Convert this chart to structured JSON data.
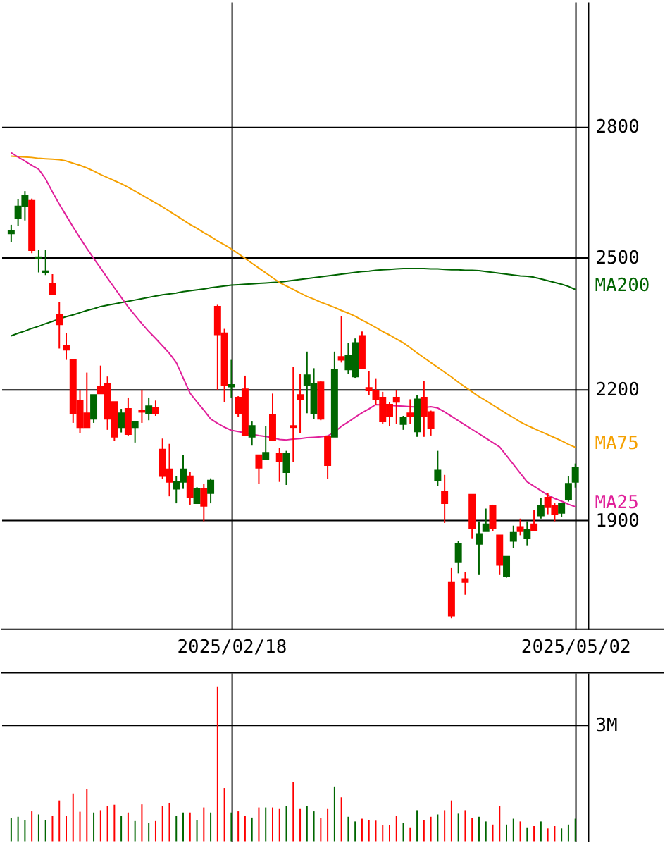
{
  "chart_data": [
    {
      "type": "candlestick",
      "categories": [
        null,
        null,
        null,
        null,
        null,
        null,
        null,
        null,
        null,
        null,
        null,
        null,
        null,
        null,
        null,
        null,
        null,
        null,
        null,
        null,
        null,
        null,
        null,
        null,
        null,
        null,
        null,
        null,
        null,
        null,
        null,
        null,
        "2025/02/18",
        null,
        null,
        null,
        null,
        null,
        null,
        null,
        null,
        null,
        null,
        null,
        null,
        null,
        null,
        null,
        null,
        null,
        null,
        null,
        null,
        null,
        null,
        null,
        null,
        null,
        null,
        null,
        null,
        null,
        null,
        null,
        null,
        null,
        null,
        null,
        null,
        null,
        null,
        null,
        null,
        null,
        null,
        null,
        null,
        null,
        null,
        null,
        null,
        null,
        "2025/05/02"
      ],
      "ohlc": [
        [
          2555,
          2575,
          2535,
          2562
        ],
        [
          2591,
          2633,
          2572,
          2617
        ],
        [
          2617,
          2652,
          2585,
          2642
        ],
        [
          2630,
          2635,
          2510,
          2517
        ],
        [
          2498,
          2517,
          2466,
          2501
        ],
        [
          2466,
          2517,
          2460,
          2469
        ],
        [
          2440,
          2462,
          2414,
          2417
        ],
        [
          2369,
          2398,
          2292,
          2347
        ],
        [
          2298,
          2327,
          2266,
          2289
        ],
        [
          2266,
          2266,
          2122,
          2144
        ],
        [
          2173,
          2196,
          2099,
          2112
        ],
        [
          2144,
          2237,
          2112,
          2112
        ],
        [
          2131,
          2186,
          2122,
          2186
        ],
        [
          2205,
          2253,
          2189,
          2189
        ],
        [
          2212,
          2228,
          2106,
          2131
        ],
        [
          2170,
          2170,
          2080,
          2090
        ],
        [
          2112,
          2154,
          2100,
          2144
        ],
        [
          2154,
          2180,
          2093,
          2096
        ],
        [
          2112,
          2125,
          2077,
          2125
        ],
        [
          2150,
          2196,
          2122,
          2147
        ],
        [
          2144,
          2180,
          2128,
          2160
        ],
        [
          2157,
          2173,
          2138,
          2144
        ],
        [
          2061,
          2086,
          1994,
          2000
        ],
        [
          2016,
          2074,
          1954,
          1987
        ],
        [
          1971,
          2000,
          1938,
          1987
        ],
        [
          1987,
          2048,
          1971,
          2016
        ],
        [
          2000,
          2010,
          1935,
          1951
        ],
        [
          1938,
          1975,
          1938,
          1971
        ],
        [
          1971,
          1983,
          1897,
          1932
        ],
        [
          1961,
          1995,
          1938,
          1990
        ],
        [
          2388,
          2392,
          2196,
          2324
        ],
        [
          2327,
          2337,
          2170,
          2208
        ],
        [
          2205,
          2266,
          2180,
          2209
        ],
        [
          2180,
          2183,
          2135,
          2144
        ],
        [
          2199,
          2230,
          2093,
          2093
        ],
        [
          2090,
          2125,
          2070,
          2115
        ],
        [
          2048,
          2048,
          1983,
          2019
        ],
        [
          2038,
          2115,
          2038,
          2054
        ],
        [
          2141,
          2189,
          2080,
          2083
        ],
        [
          2051,
          2064,
          1987,
          2035
        ],
        [
          2009,
          2058,
          1980,
          2051
        ],
        [
          2115,
          2250,
          2032,
          2112
        ],
        [
          2186,
          2234,
          2099,
          2176
        ],
        [
          2208,
          2285,
          2144,
          2231
        ],
        [
          2144,
          2247,
          2131,
          2212
        ],
        [
          2215,
          2218,
          2128,
          2131
        ],
        [
          2090,
          2090,
          1994,
          2025
        ],
        [
          2090,
          2285,
          2090,
          2244
        ],
        [
          2273,
          2366,
          2260,
          2266
        ],
        [
          2244,
          2305,
          2234,
          2276
        ],
        [
          2228,
          2315,
          2225,
          2305
        ],
        [
          2321,
          2331,
          2247,
          2247
        ],
        [
          2202,
          2241,
          2186,
          2196
        ],
        [
          2196,
          2224,
          2164,
          2176
        ],
        [
          2180,
          2193,
          2119,
          2125
        ],
        [
          2164,
          2170,
          2115,
          2138
        ],
        [
          2180,
          2196,
          2119,
          2170
        ],
        [
          2119,
          2138,
          2106,
          2135
        ],
        [
          2144,
          2176,
          2119,
          2138
        ],
        [
          2102,
          2186,
          2090,
          2176
        ],
        [
          2180,
          2218,
          2090,
          2138
        ],
        [
          2147,
          2150,
          2093,
          2109
        ],
        [
          1990,
          2058,
          1977,
          2013
        ],
        [
          1964,
          2003,
          1893,
          1938
        ],
        [
          1758,
          1790,
          1675,
          1681
        ],
        [
          1803,
          1852,
          1778,
          1845
        ],
        [
          1765,
          1781,
          1729,
          1758
        ],
        [
          1958,
          1958,
          1858,
          1881
        ],
        [
          1845,
          1897,
          1774,
          1868
        ],
        [
          1874,
          1926,
          1874,
          1890
        ],
        [
          1932,
          1935,
          1874,
          1881
        ],
        [
          1865,
          1865,
          1774,
          1797
        ],
        [
          1771,
          1816,
          1768,
          1816
        ],
        [
          1852,
          1887,
          1836,
          1871
        ],
        [
          1884,
          1903,
          1865,
          1874
        ],
        [
          1858,
          1897,
          1842,
          1877
        ],
        [
          1890,
          1922,
          1874,
          1877
        ],
        [
          1910,
          1951,
          1903,
          1932
        ],
        [
          1951,
          1961,
          1913,
          1929
        ],
        [
          1932,
          1938,
          1897,
          1913
        ],
        [
          1916,
          1938,
          1907,
          1938
        ],
        [
          1948,
          2000,
          1942,
          1983
        ],
        [
          1987,
          2029,
          1974,
          2019
        ]
      ],
      "colors": [
        "#006600",
        "#006600",
        "#006600",
        "#ff0000",
        "#006600",
        "#006600",
        "#ff0000",
        "#ff0000",
        "#ff0000",
        "#ff0000",
        "#ff0000",
        "#ff0000",
        "#006600",
        "#ff0000",
        "#ff0000",
        "#ff0000",
        "#006600",
        "#ff0000",
        "#006600",
        "#ff0000",
        "#006600",
        "#ff0000",
        "#ff0000",
        "#ff0000",
        "#006600",
        "#006600",
        "#ff0000",
        "#006600",
        "#ff0000",
        "#006600",
        "#ff0000",
        "#ff0000",
        "#006600",
        "#ff0000",
        "#ff0000",
        "#006600",
        "#ff0000",
        "#006600",
        "#ff0000",
        "#ff0000",
        "#006600",
        "#ff0000",
        "#ff0000",
        "#006600",
        "#006600",
        "#ff0000",
        "#ff0000",
        "#006600",
        "#ff0000",
        "#006600",
        "#006600",
        "#ff0000",
        "#ff0000",
        "#ff0000",
        "#ff0000",
        "#ff0000",
        "#ff0000",
        "#006600",
        "#ff0000",
        "#006600",
        "#ff0000",
        "#ff0000",
        "#006600",
        "#ff0000",
        "#ff0000",
        "#006600",
        "#ff0000",
        "#ff0000",
        "#006600",
        "#006600",
        "#ff0000",
        "#ff0000",
        "#006600",
        "#006600",
        "#ff0000",
        "#006600",
        "#ff0000",
        "#006600",
        "#ff0000",
        "#ff0000",
        "#006600",
        "#006600",
        "#006600"
      ],
      "series": [
        {
          "name": "MA200",
          "type": "line",
          "color": "#006400",
          "values": [
            2321,
            2327,
            2332,
            2338,
            2343,
            2349,
            2354,
            2360,
            2365,
            2369,
            2374,
            2379,
            2383,
            2388,
            2391,
            2394,
            2397,
            2400,
            2403,
            2406,
            2409,
            2412,
            2415,
            2417,
            2419,
            2422,
            2424,
            2426,
            2428,
            2431,
            2433,
            2435,
            2437,
            2438,
            2439,
            2440,
            2441,
            2442,
            2443,
            2444,
            2446,
            2448,
            2450,
            2452,
            2454,
            2456,
            2458,
            2460,
            2462,
            2464,
            2466,
            2468,
            2469,
            2471,
            2472,
            2473,
            2474,
            2475,
            2475,
            2475,
            2475,
            2474,
            2474,
            2473,
            2472,
            2472,
            2471,
            2471,
            2470,
            2468,
            2466,
            2464,
            2462,
            2460,
            2458,
            2457,
            2455,
            2451,
            2447,
            2443,
            2439,
            2434,
            2427
          ]
        },
        {
          "name": "MA75",
          "type": "line",
          "color": "#f5a000",
          "values": [
            2732,
            2731,
            2730,
            2729,
            2727,
            2726,
            2725,
            2724,
            2721,
            2716,
            2711,
            2705,
            2698,
            2690,
            2683,
            2676,
            2669,
            2661,
            2652,
            2643,
            2634,
            2625,
            2616,
            2606,
            2596,
            2586,
            2576,
            2567,
            2557,
            2548,
            2538,
            2529,
            2520,
            2509,
            2498,
            2487,
            2476,
            2465,
            2454,
            2443,
            2435,
            2427,
            2419,
            2411,
            2405,
            2398,
            2392,
            2386,
            2379,
            2373,
            2366,
            2357,
            2349,
            2340,
            2331,
            2323,
            2314,
            2305,
            2294,
            2282,
            2271,
            2260,
            2249,
            2238,
            2227,
            2215,
            2204,
            2193,
            2182,
            2173,
            2163,
            2153,
            2143,
            2134,
            2124,
            2116,
            2109,
            2102,
            2095,
            2088,
            2081,
            2073,
            2066
          ]
        },
        {
          "name": "MA25",
          "type": "line",
          "color": "#e0209a",
          "values": [
            2740,
            2730,
            2721,
            2711,
            2702,
            2680,
            2650,
            2622,
            2596,
            2570,
            2545,
            2521,
            2498,
            2476,
            2453,
            2431,
            2409,
            2387,
            2368,
            2349,
            2331,
            2315,
            2298,
            2281,
            2260,
            2225,
            2190,
            2170,
            2151,
            2131,
            2121,
            2112,
            2105,
            2102,
            2099,
            2096,
            2093,
            2091,
            2088,
            2084,
            2083,
            2085,
            2086,
            2088,
            2089,
            2090,
            2092,
            2101,
            2114,
            2124,
            2135,
            2145,
            2154,
            2164,
            2163,
            2162,
            2161,
            2160,
            2159,
            2158,
            2157,
            2159,
            2156,
            2147,
            2137,
            2127,
            2117,
            2107,
            2097,
            2087,
            2077,
            2067,
            2047,
            2027,
            2007,
            1987,
            1977,
            1967,
            1957,
            1949,
            1943,
            1936,
            1930
          ]
        }
      ],
      "ylim": [
        1650,
        3085
      ],
      "yticks": [
        1900,
        2200,
        2500,
        2800
      ],
      "grid": true,
      "legend": false,
      "marker": "none",
      "line_style": "solid"
    },
    {
      "type": "bar",
      "categories": [
        null,
        null,
        null,
        null,
        null,
        null,
        null,
        null,
        null,
        null,
        null,
        null,
        null,
        null,
        null,
        null,
        null,
        null,
        null,
        null,
        null,
        null,
        null,
        null,
        null,
        null,
        null,
        null,
        null,
        null,
        null,
        null,
        "2025/02/18",
        null,
        null,
        null,
        null,
        null,
        null,
        null,
        null,
        null,
        null,
        null,
        null,
        null,
        null,
        null,
        null,
        null,
        null,
        null,
        null,
        null,
        null,
        null,
        null,
        null,
        null,
        null,
        null,
        null,
        null,
        null,
        null,
        null,
        null,
        null,
        null,
        null,
        null,
        null,
        null,
        null,
        null,
        null,
        null,
        null,
        null,
        null,
        null,
        null,
        "2025/05/02"
      ],
      "values": [
        590000,
        630000,
        550000,
        770000,
        690000,
        550000,
        650000,
        1050000,
        650000,
        1230000,
        760000,
        1350000,
        740000,
        800000,
        900000,
        940000,
        650000,
        740000,
        520000,
        950000,
        470000,
        520000,
        900000,
        990000,
        650000,
        740000,
        740000,
        550000,
        870000,
        740000,
        3990000,
        1370000,
        740000,
        770000,
        650000,
        610000,
        870000,
        870000,
        870000,
        830000,
        900000,
        1520000,
        830000,
        900000,
        770000,
        590000,
        830000,
        1410000,
        1130000,
        630000,
        510000,
        580000,
        550000,
        530000,
        410000,
        410000,
        650000,
        470000,
        340000,
        800000,
        550000,
        630000,
        690000,
        800000,
        1050000,
        710000,
        800000,
        590000,
        630000,
        510000,
        430000,
        900000,
        430000,
        580000,
        510000,
        340000,
        390000,
        510000,
        330000,
        390000,
        330000,
        430000,
        580000
      ],
      "colors": [
        "#006600",
        "#006600",
        "#006600",
        "#ff0000",
        "#006600",
        "#006600",
        "#ff0000",
        "#ff0000",
        "#ff0000",
        "#ff0000",
        "#ff0000",
        "#ff0000",
        "#006600",
        "#ff0000",
        "#ff0000",
        "#ff0000",
        "#006600",
        "#ff0000",
        "#006600",
        "#ff0000",
        "#006600",
        "#ff0000",
        "#ff0000",
        "#ff0000",
        "#006600",
        "#006600",
        "#ff0000",
        "#006600",
        "#ff0000",
        "#006600",
        "#ff0000",
        "#ff0000",
        "#006600",
        "#ff0000",
        "#ff0000",
        "#006600",
        "#ff0000",
        "#006600",
        "#ff0000",
        "#ff0000",
        "#006600",
        "#ff0000",
        "#ff0000",
        "#006600",
        "#006600",
        "#ff0000",
        "#ff0000",
        "#006600",
        "#ff0000",
        "#006600",
        "#006600",
        "#ff0000",
        "#ff0000",
        "#ff0000",
        "#ff0000",
        "#ff0000",
        "#ff0000",
        "#006600",
        "#ff0000",
        "#006600",
        "#ff0000",
        "#ff0000",
        "#006600",
        "#ff0000",
        "#ff0000",
        "#006600",
        "#ff0000",
        "#ff0000",
        "#006600",
        "#006600",
        "#ff0000",
        "#ff0000",
        "#006600",
        "#006600",
        "#ff0000",
        "#006600",
        "#ff0000",
        "#006600",
        "#ff0000",
        "#ff0000",
        "#006600",
        "#006600",
        "#006600"
      ],
      "ylim": [
        0,
        4340000
      ],
      "yticks": [
        {
          "value": 3000000,
          "label": "3M"
        }
      ],
      "grid": true,
      "tick_labels": "y"
    }
  ]
}
